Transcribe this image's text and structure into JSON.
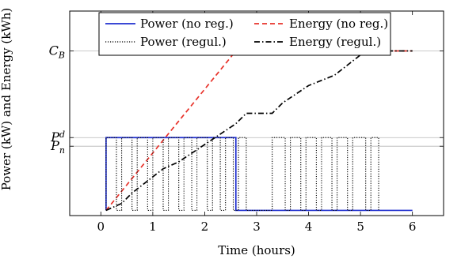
{
  "chart_data": {
    "type": "line",
    "xlabel": "Time (hours)",
    "ylabel": "Power (kW) and Energy (kWh)",
    "xlim": [
      -0.6,
      6.6
    ],
    "ylim": [
      -0.03,
      1.15
    ],
    "x_ticks": [
      0,
      1,
      2,
      3,
      4,
      5,
      6
    ],
    "y_ticks": [
      {
        "value": 0.92,
        "label": "C",
        "sub": "B"
      },
      {
        "value": 0.42,
        "label": "P",
        "sub": "d"
      },
      {
        "value": 0.37,
        "label": "P",
        "sub": "n"
      }
    ],
    "legend": {
      "placement": "top-center",
      "entries": [
        {
          "series": 0,
          "label": "Power (no reg.)"
        },
        {
          "series": 1,
          "label": "Energy (no reg.)"
        },
        {
          "series": 2,
          "label": "Power (regul.)"
        },
        {
          "series": 3,
          "label": "Energy (regul.)"
        }
      ]
    },
    "series": [
      {
        "name": "Power (no reg.)",
        "color": "#1f2fcf",
        "dash": "solid",
        "x": [
          0.1,
          0.1,
          2.6,
          2.6,
          6.0
        ],
        "y": [
          0.0,
          0.42,
          0.42,
          0.0,
          0.0
        ]
      },
      {
        "name": "Energy (no reg.)",
        "color": "#e8322a",
        "dash": "dashed",
        "x": [
          0.1,
          2.6,
          6.0
        ],
        "y": [
          0.0,
          0.92,
          0.92
        ]
      },
      {
        "name": "Power (regul.)",
        "color": "#000000",
        "dash": "dotted",
        "pulse_high": 0.42,
        "pulse_low": 0.0,
        "pulses": [
          [
            0.1,
            0.3
          ],
          [
            0.4,
            0.6
          ],
          [
            0.7,
            0.9
          ],
          [
            1.0,
            1.2
          ],
          [
            1.3,
            1.5
          ],
          [
            1.6,
            1.75
          ],
          [
            1.85,
            2.05
          ],
          [
            2.15,
            2.3
          ],
          [
            2.4,
            2.55
          ],
          [
            2.65,
            2.8
          ],
          [
            3.3,
            3.55
          ],
          [
            3.65,
            3.85
          ],
          [
            3.95,
            4.15
          ],
          [
            4.25,
            4.45
          ],
          [
            4.55,
            4.75
          ],
          [
            4.85,
            5.1
          ],
          [
            5.2,
            5.35
          ]
        ]
      },
      {
        "name": "Energy (regul.)",
        "color": "#000000",
        "dash": "dashdot",
        "x": [
          0.1,
          0.4,
          0.6,
          1.2,
          1.5,
          2.0,
          2.6,
          2.8,
          3.3,
          3.5,
          4.0,
          4.5,
          5.1,
          5.3,
          6.0
        ],
        "y": [
          0.0,
          0.04,
          0.1,
          0.24,
          0.28,
          0.38,
          0.5,
          0.56,
          0.56,
          0.62,
          0.72,
          0.78,
          0.92,
          0.92,
          0.92
        ]
      }
    ]
  }
}
